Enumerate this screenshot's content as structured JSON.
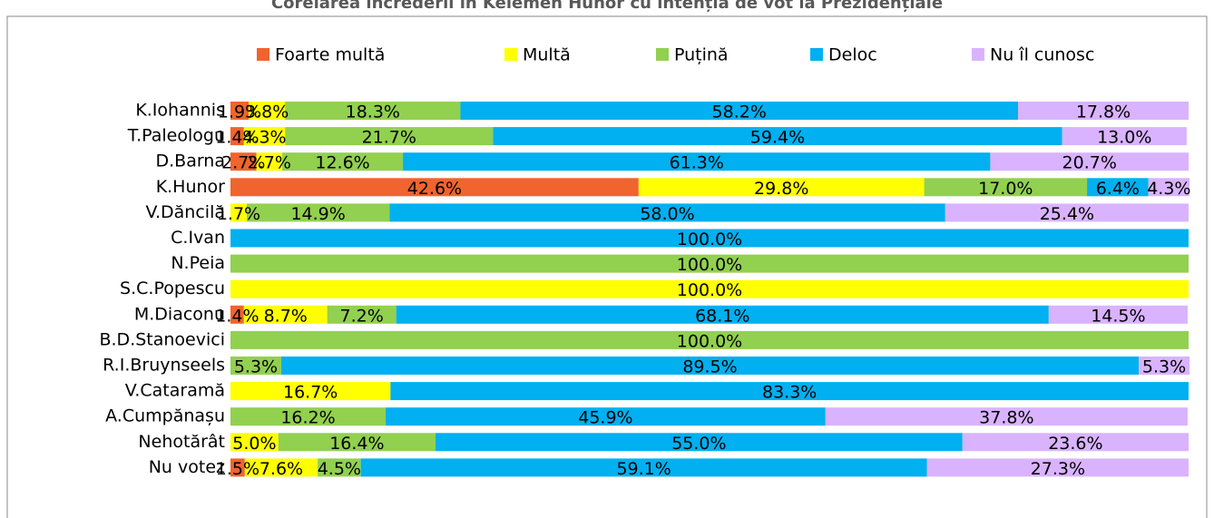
{
  "chart_data": {
    "type": "stacked_barh",
    "title": "Corelarea încrederii în Kelemen Hunor cu intenția de vot la Prezidențiale",
    "categories": [
      "K.Iohannis",
      "T.Paleologu",
      "D.Barna",
      "K.Hunor",
      "V.Dăncilă",
      "C.Ivan",
      "N.Peia",
      "S.C.Popescu",
      "M.Diaconu",
      "B.D.Stanoevici",
      "R.I.Bruynseels",
      "V.Cataramă",
      "A.Cumpănașu",
      "Nehotărât",
      "Nu votez"
    ],
    "xlim": [
      0,
      100
    ],
    "series": [
      {
        "name": "Foarte multă",
        "color": "#f0642d",
        "values": [
          1.9,
          1.4,
          2.7,
          42.6,
          null,
          null,
          null,
          null,
          1.4,
          null,
          null,
          null,
          null,
          null,
          1.5
        ],
        "value_labels": [
          "1.9%",
          "1.4%",
          "2.7%",
          "42.6%",
          null,
          null,
          null,
          null,
          "1.4%",
          null,
          null,
          null,
          null,
          null,
          "1.5%"
        ]
      },
      {
        "name": "Multă",
        "color": "#ffff00",
        "values": [
          3.8,
          4.3,
          2.7,
          29.8,
          1.7,
          null,
          null,
          100.0,
          8.7,
          null,
          null,
          16.7,
          null,
          5.0,
          7.6
        ],
        "value_labels": [
          "3.8%",
          "4.3%",
          "2.7%",
          "29.8%",
          "1.7%",
          null,
          null,
          "100.0%",
          "8.7%",
          null,
          null,
          "16.7%",
          null,
          "5.0%",
          "7.6%"
        ]
      },
      {
        "name": "Puțină",
        "color": "#92d050",
        "values": [
          18.3,
          21.7,
          12.6,
          17.0,
          14.9,
          null,
          100.0,
          null,
          7.2,
          100.0,
          5.3,
          null,
          16.2,
          16.4,
          4.5
        ],
        "value_labels": [
          "18.3%",
          "21.7%",
          "12.6%",
          "17.0%",
          "14.9%",
          null,
          "100.0%",
          null,
          "7.2%",
          "100.0%",
          "5.3%",
          null,
          "16.2%",
          "16.4%",
          "4.5%"
        ]
      },
      {
        "name": "Deloc",
        "color": "#00b0f0",
        "values": [
          58.2,
          59.4,
          61.3,
          6.4,
          58.0,
          100.0,
          null,
          null,
          68.1,
          null,
          89.5,
          83.3,
          45.9,
          55.0,
          59.1
        ],
        "value_labels": [
          "58.2%",
          "59.4%",
          "61.3%",
          "6.4%",
          "58.0%",
          "100.0%",
          null,
          null,
          "68.1%",
          null,
          "89.5%",
          "83.3%",
          "45.9%",
          "55.0%",
          "59.1%"
        ]
      },
      {
        "name": "Nu îl cunosc",
        "color": "#d9b3ff",
        "values": [
          17.8,
          13.0,
          20.7,
          4.3,
          25.4,
          null,
          null,
          null,
          14.5,
          null,
          5.3,
          null,
          37.8,
          23.6,
          27.3
        ],
        "value_labels": [
          "17.8%",
          "13.0%",
          "20.7%",
          "4.3%",
          "25.4%",
          null,
          null,
          null,
          "14.5%",
          null,
          "5.3%",
          null,
          "37.8%",
          "23.6%",
          "27.3%"
        ]
      }
    ]
  }
}
